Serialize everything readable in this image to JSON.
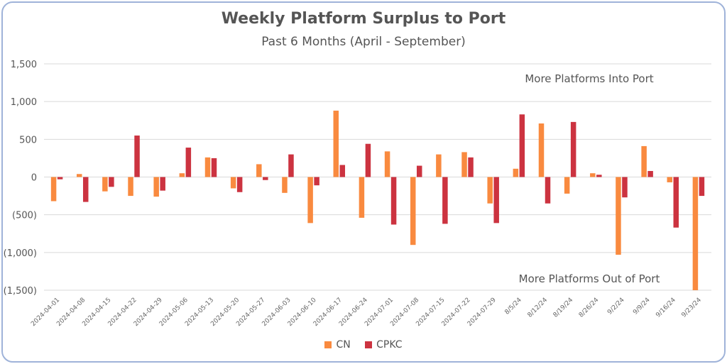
{
  "chart_data": {
    "type": "bar",
    "title": "Weekly Platform Surplus to Port",
    "subtitle": "Past 6 Months (April - September)",
    "xlabel": "",
    "ylabel": "",
    "ylim": [
      -1500,
      1500
    ],
    "yticks": [
      1500,
      1000,
      500,
      0,
      -500,
      -1000,
      -1500
    ],
    "ytick_labels": [
      "1,500",
      "1,000",
      "500",
      "0",
      "(500)",
      "(1,000)",
      "(1,500)"
    ],
    "grid": "horizontal",
    "legend_position": "bottom",
    "categories": [
      "2024-04-01",
      "2024-04-08",
      "2024-04-15",
      "2024-04-22",
      "2024-04-29",
      "2024-05-06",
      "2024-05-13",
      "2024-05-20",
      "2024-05-27",
      "2024-06-03",
      "2024-06-10",
      "2024-06-17",
      "2024-06-24",
      "2024-07-01",
      "2024-07-08",
      "2024-07-15",
      "2024-07-22",
      "2024-07-29",
      "8/5/24",
      "8/12/24",
      "8/19/24",
      "8/26/24",
      "9/2/24",
      "9/9/24",
      "9/16/24",
      "9/23/24"
    ],
    "series": [
      {
        "name": "CN",
        "color": "#f98a3f",
        "values": [
          -320,
          40,
          -190,
          -250,
          -260,
          50,
          260,
          -150,
          170,
          -210,
          -610,
          880,
          -540,
          340,
          -900,
          300,
          330,
          -350,
          110,
          710,
          -220,
          50,
          -1030,
          410,
          -70,
          -1500
        ]
      },
      {
        "name": "CPKC",
        "color": "#cc3340",
        "values": [
          -30,
          -330,
          -130,
          550,
          -180,
          390,
          250,
          -200,
          -40,
          300,
          -110,
          160,
          440,
          -630,
          150,
          -620,
          260,
          -610,
          830,
          -350,
          730,
          30,
          -270,
          80,
          -670,
          -250
        ]
      }
    ],
    "annotations": [
      "More Platforms Into Port",
      "More Platforms Out of Port"
    ]
  }
}
